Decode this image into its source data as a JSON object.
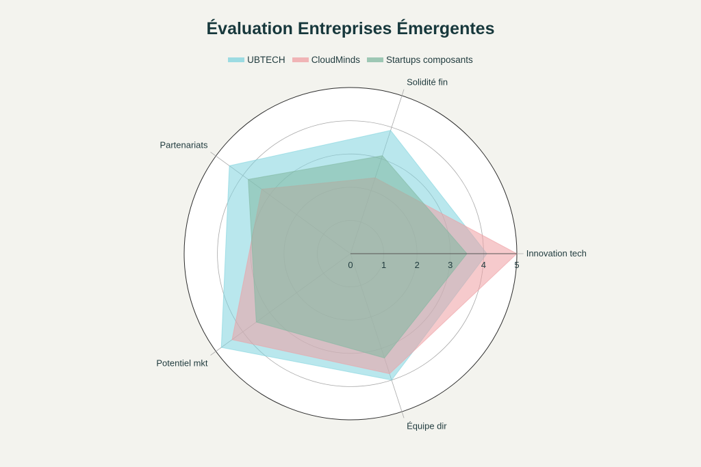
{
  "chart_data": {
    "type": "radar",
    "title": "Évaluation Entreprises Émergentes",
    "axes": [
      "Innovation tech",
      "Solidité fin",
      "Partenariats",
      "Potentiel mkt",
      "Équipe dir"
    ],
    "radial_ticks": [
      "0",
      "1",
      "2",
      "3",
      "4",
      "5"
    ],
    "rlim": [
      0,
      5
    ],
    "legend_position": "top-center",
    "series": [
      {
        "name": "UBTECH",
        "values": [
          4.1,
          3.9,
          4.5,
          4.8,
          4.0
        ],
        "color": "#7fd3de"
      },
      {
        "name": "CloudMinds",
        "values": [
          5.0,
          2.4,
          3.3,
          4.4,
          3.8
        ],
        "color": "#ef9fa3"
      },
      {
        "name": "Startups composants",
        "values": [
          3.5,
          3.1,
          3.8,
          3.5,
          3.3
        ],
        "color": "#80b8a0"
      }
    ]
  }
}
